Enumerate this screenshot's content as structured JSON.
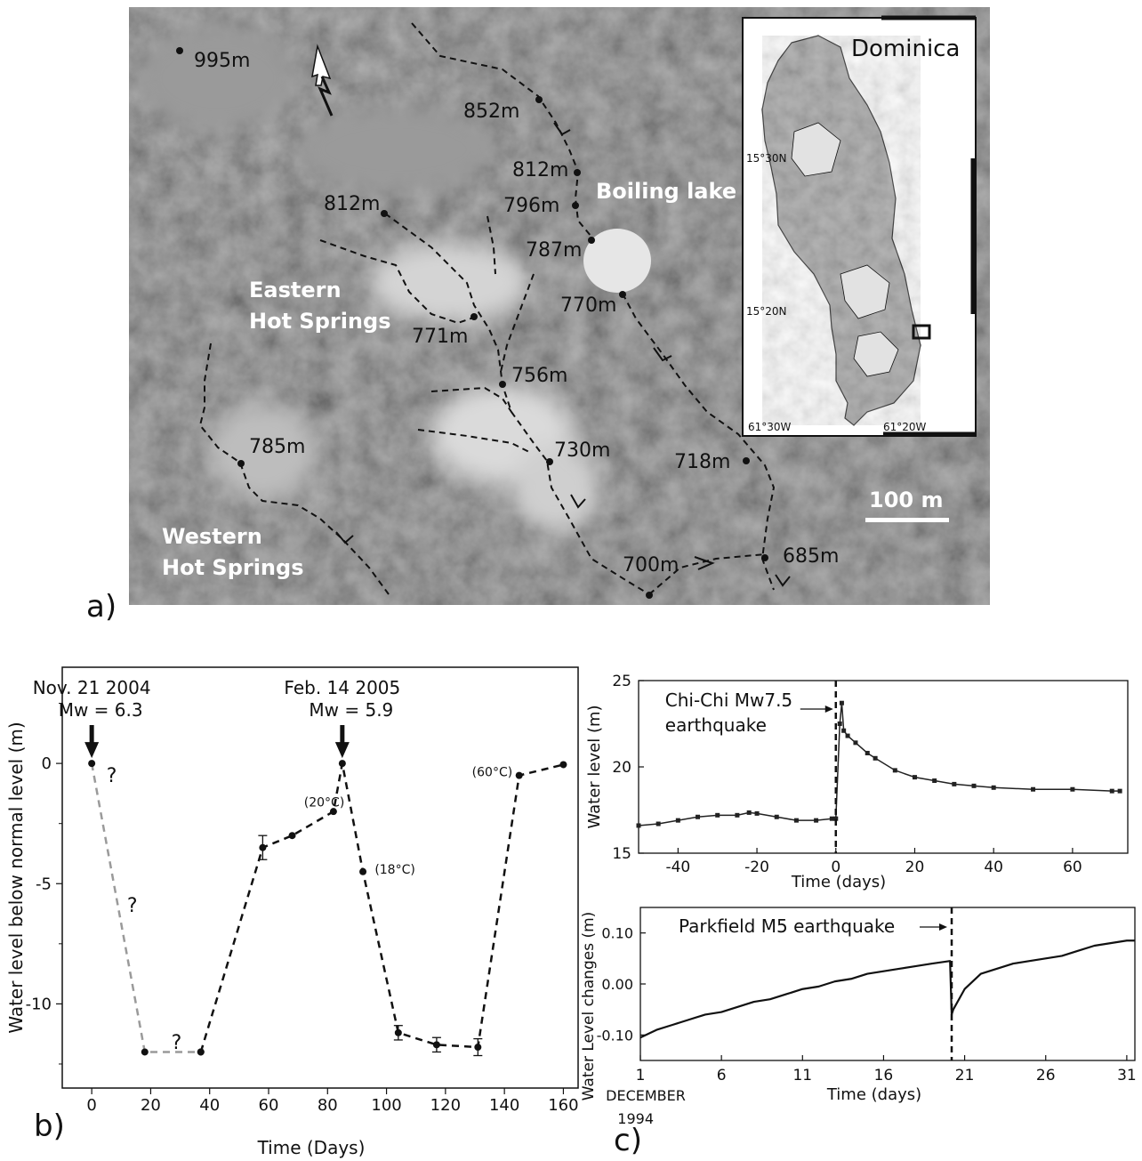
{
  "panel_labels": {
    "a": "a)",
    "b": "b)",
    "c": "c)"
  },
  "map": {
    "place_labels": [
      {
        "id": "boiling",
        "text": "Boiling lake"
      },
      {
        "id": "eastern1",
        "text": "Eastern"
      },
      {
        "id": "eastern2",
        "text": "Hot Springs"
      },
      {
        "id": "western1",
        "text": "Western"
      },
      {
        "id": "western2",
        "text": "Hot Springs"
      }
    ],
    "elevations": [
      "995m",
      "852m",
      "812m",
      "796m",
      "812m",
      "787m",
      "770m",
      "771m",
      "756m",
      "730m",
      "718m",
      "785m",
      "700m",
      "685m"
    ],
    "scale_bar": "100 m",
    "inset": {
      "title": "Dominica",
      "lat_labels": [
        "15°30N",
        "15°20N"
      ],
      "lon_labels": [
        "61°30W",
        "61°20W"
      ]
    },
    "colors": {
      "water": "#e6e6e6",
      "terrain_dark": "#5a5a5a",
      "terrain_light": "#dcdcdc"
    }
  },
  "chart_data": [
    {
      "id": "b",
      "type": "line",
      "xlabel": "Time (Days)",
      "ylabel": "Water level below normal level (m)",
      "xlim": [
        -10,
        165
      ],
      "ylim": [
        -13.5,
        4
      ],
      "xticks": [
        "0",
        "20",
        "40",
        "60",
        "80",
        "100",
        "120",
        "140",
        "160"
      ],
      "yticks": [
        "0",
        "-5",
        "-10"
      ],
      "events": [
        {
          "x": 0,
          "label1": "Nov. 21 2004",
          "label2": "Mw = 6.3"
        },
        {
          "x": 85,
          "label1": "Feb. 14 2005",
          "label2": "Mw = 5.9"
        }
      ],
      "series": [
        {
          "style": "uncertain",
          "color": "#9a9a9a",
          "x": [
            0,
            18,
            37
          ],
          "y": [
            0,
            -12,
            -12
          ]
        },
        {
          "style": "observed",
          "color": "#111111",
          "x": [
            37,
            58,
            68,
            82,
            85,
            92,
            104,
            117,
            131,
            145,
            160
          ],
          "y": [
            -12,
            -3.5,
            -3.0,
            -2.0,
            0,
            -4.5,
            -11.2,
            -11.7,
            -11.8,
            -0.5,
            -0.05
          ]
        }
      ],
      "error_bars": [
        {
          "x": 58,
          "y": -3.5,
          "err": 0.5
        },
        {
          "x": 104,
          "y": -11.2,
          "err": 0.3
        },
        {
          "x": 117,
          "y": -11.7,
          "err": 0.3
        },
        {
          "x": 131,
          "y": -11.8,
          "err": 0.35
        }
      ],
      "question_marks": [
        {
          "x": 5,
          "y": -0.4,
          "text": "?"
        },
        {
          "x": 12,
          "y": -5.8,
          "text": "?"
        },
        {
          "x": 27,
          "y": -11.5,
          "text": "?"
        }
      ],
      "annotations": [
        {
          "x": 72,
          "y": -1.6,
          "text": "(20°C)"
        },
        {
          "x": 96,
          "y": -4.4,
          "text": "(18°C)"
        },
        {
          "x": 129,
          "y": -0.35,
          "text": "(60°C)"
        }
      ]
    },
    {
      "id": "c1",
      "type": "line",
      "xlabel": "Time (days)",
      "ylabel": "Water level (m)",
      "xlim": [
        -50,
        74
      ],
      "ylim": [
        15,
        25
      ],
      "xticks": [
        "-40",
        "-20",
        "0",
        "20",
        "40",
        "60"
      ],
      "yticks": [
        "15",
        "20",
        "25"
      ],
      "event_x": 0,
      "event_label1": "Chi-Chi Mw7.5",
      "event_label2": "earthquake",
      "series": [
        {
          "x": [
            -50,
            -45,
            -40,
            -35,
            -30,
            -25,
            -22,
            -20,
            -15,
            -10,
            -5,
            -1,
            0,
            1,
            1.5,
            2,
            3,
            5,
            8,
            10,
            15,
            20,
            25,
            30,
            35,
            40,
            50,
            60,
            70,
            72
          ],
          "y": [
            16.6,
            16.7,
            16.9,
            17.1,
            17.2,
            17.2,
            17.35,
            17.3,
            17.1,
            16.9,
            16.9,
            17.0,
            17.0,
            22.5,
            23.7,
            22.1,
            21.8,
            21.4,
            20.8,
            20.5,
            19.8,
            19.4,
            19.2,
            19.0,
            18.9,
            18.8,
            18.7,
            18.7,
            18.6,
            18.6
          ]
        }
      ]
    },
    {
      "id": "c2",
      "type": "line",
      "xlabel": "Time (days)",
      "ylabel": "Water Level changes (m)",
      "x_sub_labels": [
        "DECEMBER",
        "1994"
      ],
      "xlim": [
        1,
        31.5
      ],
      "ylim": [
        -0.15,
        0.15
      ],
      "xticks": [
        "1",
        "6",
        "11",
        "16",
        "21",
        "26",
        "31"
      ],
      "yticks": [
        "0.10",
        "0.00",
        "-0.10"
      ],
      "event_x": 20.2,
      "event_label": "Parkfield M5 earthquake",
      "series": [
        {
          "x": [
            1,
            2,
            3,
            4,
            5,
            6,
            7,
            8,
            9,
            10,
            11,
            12,
            13,
            14,
            15,
            16,
            17,
            18,
            19,
            20.1,
            20.2,
            20.3,
            21,
            22,
            23,
            24,
            25,
            26,
            27,
            28,
            29,
            30,
            31,
            31.5
          ],
          "y": [
            -0.105,
            -0.09,
            -0.08,
            -0.07,
            -0.06,
            -0.055,
            -0.045,
            -0.035,
            -0.03,
            -0.02,
            -0.01,
            -0.005,
            0.005,
            0.01,
            0.02,
            0.025,
            0.03,
            0.035,
            0.04,
            0.045,
            -0.06,
            -0.05,
            -0.01,
            0.02,
            0.03,
            0.04,
            0.045,
            0.05,
            0.055,
            0.065,
            0.075,
            0.08,
            0.085,
            0.085
          ]
        }
      ]
    }
  ]
}
